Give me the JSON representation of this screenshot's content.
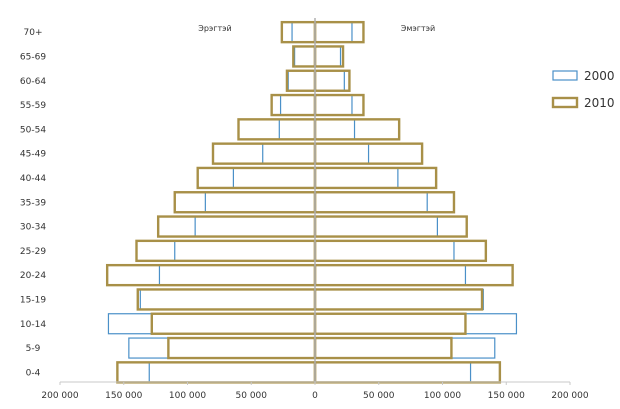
{
  "chart_data": {
    "type": "bar",
    "orientation": "horizontal",
    "layout": "population-pyramid",
    "title": "",
    "side_labels": {
      "left": "Эрэгтэй",
      "right": "Эмэгтэй"
    },
    "categories": [
      "70+",
      "65-69",
      "60-64",
      "55-59",
      "50-54",
      "45-49",
      "40-44",
      "35-39",
      "30-34",
      "25-29",
      "20-24",
      "15-19",
      "10-14",
      "5-9",
      "0-4"
    ],
    "series": [
      {
        "name": "2000",
        "color": "#4a90c8",
        "male": [
          18000,
          16000,
          21000,
          27000,
          28000,
          41000,
          64000,
          86000,
          94000,
          110000,
          122000,
          137000,
          162000,
          146000,
          130000
        ],
        "female": [
          29000,
          20000,
          23000,
          29000,
          31000,
          42000,
          65000,
          88000,
          96000,
          109000,
          118000,
          132000,
          158000,
          141000,
          122000
        ]
      },
      {
        "name": "2010",
        "color": "#a89048",
        "male": [
          26000,
          17000,
          22000,
          34000,
          60000,
          80000,
          92000,
          110000,
          123000,
          140000,
          163000,
          139000,
          128000,
          115000,
          155000
        ],
        "female": [
          38000,
          22000,
          27000,
          38000,
          66000,
          84000,
          95000,
          109000,
          119000,
          134000,
          155000,
          131000,
          118000,
          107000,
          145000
        ]
      }
    ],
    "x_ticks": [
      "200 000",
      "150 000",
      "100 000",
      "50 000",
      "0",
      "50 000",
      "100 000",
      "150 000",
      "200 000"
    ],
    "xlim": [
      -200000,
      200000
    ],
    "legend_position": "right",
    "grid": false
  }
}
